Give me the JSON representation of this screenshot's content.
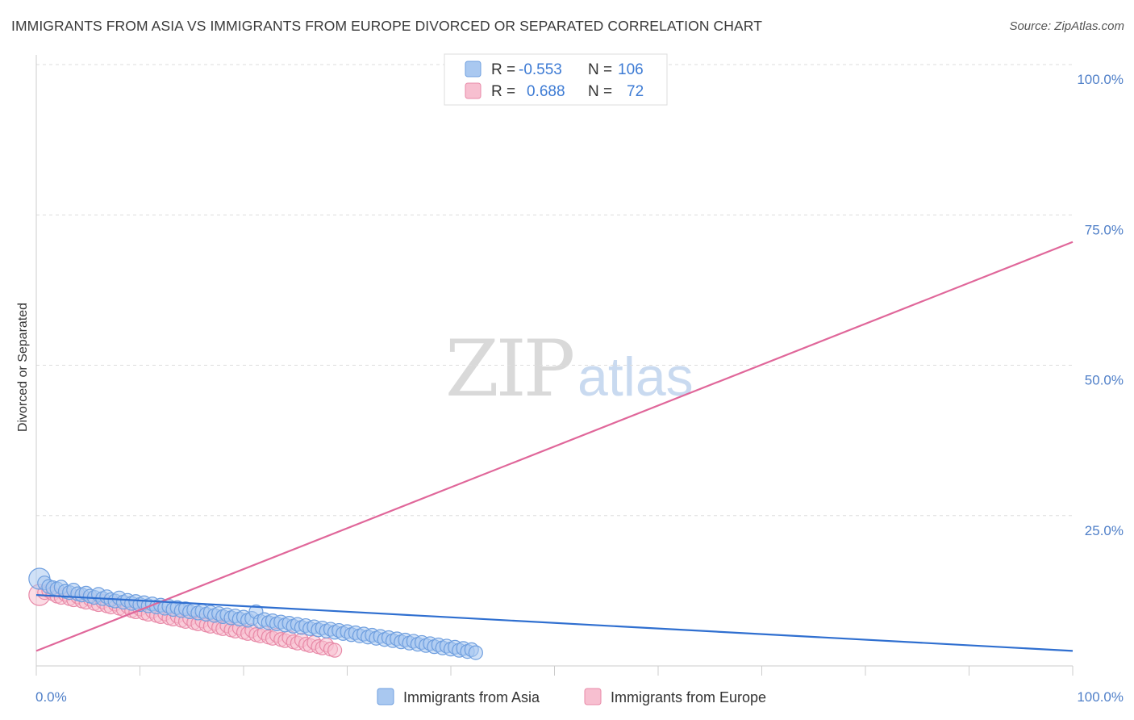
{
  "title": "IMMIGRANTS FROM ASIA VS IMMIGRANTS FROM EUROPE DIVORCED OR SEPARATED CORRELATION CHART",
  "source": "Source: ZipAtlas.com",
  "watermark": {
    "zip": "ZIP",
    "atlas": "atlas"
  },
  "colors": {
    "asia_fill": "#a9c8f0",
    "asia_stroke": "#6f9fdf",
    "asia_line": "#2f6fd0",
    "europe_fill": "#f7bfd0",
    "europe_stroke": "#e88aa8",
    "europe_line": "#e0679a",
    "grid": "#dddddd",
    "tick_text": "#4f7fc8"
  },
  "legend": {
    "asia": {
      "r_label": "R =",
      "r_value": "-0.553",
      "n_label": "N =",
      "n_value": "106"
    },
    "europe": {
      "r_label": "R =",
      "r_value": "0.688",
      "n_label": "N =",
      "n_value": "72"
    }
  },
  "chart_data": {
    "type": "scatter",
    "title": "IMMIGRANTS FROM ASIA VS IMMIGRANTS FROM EUROPE DIVORCED OR SEPARATED CORRELATION CHART",
    "xlabel": "",
    "ylabel": "Divorced or Separated",
    "xlim": [
      0,
      100
    ],
    "ylim": [
      0,
      100
    ],
    "x_tick_labels": [
      "0.0%",
      "100.0%"
    ],
    "y_ticks": [
      25,
      50,
      75,
      100
    ],
    "y_tick_labels": [
      "25.0%",
      "50.0%",
      "75.0%",
      "100.0%"
    ],
    "legend_position": "top-center",
    "series": [
      {
        "name": "Immigrants from Asia",
        "r": -0.553,
        "n": 106,
        "trendline": {
          "x": [
            0,
            100
          ],
          "y": [
            11.8,
            2.5
          ]
        },
        "points": [
          [
            0.3,
            14.5
          ],
          [
            0.8,
            13.8
          ],
          [
            1.2,
            13.2
          ],
          [
            1.6,
            13.0
          ],
          [
            2.0,
            12.8
          ],
          [
            2.4,
            13.1
          ],
          [
            2.8,
            12.4
          ],
          [
            3.2,
            12.2
          ],
          [
            3.6,
            12.6
          ],
          [
            4.0,
            12.0
          ],
          [
            4.4,
            11.8
          ],
          [
            4.8,
            12.1
          ],
          [
            5.2,
            11.6
          ],
          [
            5.6,
            11.4
          ],
          [
            6.0,
            11.9
          ],
          [
            6.4,
            11.2
          ],
          [
            6.8,
            11.5
          ],
          [
            7.2,
            11.0
          ],
          [
            7.6,
            10.8
          ],
          [
            8.0,
            11.3
          ],
          [
            8.4,
            10.6
          ],
          [
            8.8,
            10.9
          ],
          [
            9.2,
            10.4
          ],
          [
            9.6,
            10.7
          ],
          [
            10.0,
            10.2
          ],
          [
            10.4,
            10.5
          ],
          [
            10.8,
            10.0
          ],
          [
            11.2,
            10.3
          ],
          [
            11.6,
            9.8
          ],
          [
            12.0,
            10.1
          ],
          [
            12.4,
            9.6
          ],
          [
            12.8,
            9.9
          ],
          [
            13.2,
            9.4
          ],
          [
            13.6,
            9.7
          ],
          [
            14.0,
            9.2
          ],
          [
            14.4,
            9.5
          ],
          [
            14.8,
            9.0
          ],
          [
            15.2,
            9.3
          ],
          [
            15.6,
            8.8
          ],
          [
            16.0,
            9.1
          ],
          [
            16.4,
            8.6
          ],
          [
            16.8,
            8.9
          ],
          [
            17.2,
            8.4
          ],
          [
            17.6,
            8.7
          ],
          [
            18.0,
            8.2
          ],
          [
            18.4,
            8.5
          ],
          [
            18.8,
            8.0
          ],
          [
            19.2,
            8.3
          ],
          [
            19.6,
            7.8
          ],
          [
            20.0,
            8.1
          ],
          [
            20.4,
            7.6
          ],
          [
            20.8,
            7.9
          ],
          [
            21.2,
            9.0
          ],
          [
            21.6,
            7.4
          ],
          [
            22.0,
            7.7
          ],
          [
            22.4,
            7.2
          ],
          [
            22.8,
            7.5
          ],
          [
            23.2,
            7.0
          ],
          [
            23.6,
            7.3
          ],
          [
            24.0,
            6.8
          ],
          [
            24.4,
            7.1
          ],
          [
            24.8,
            6.6
          ],
          [
            25.2,
            6.9
          ],
          [
            25.6,
            6.4
          ],
          [
            26.0,
            6.7
          ],
          [
            26.4,
            6.2
          ],
          [
            26.8,
            6.5
          ],
          [
            27.2,
            6.0
          ],
          [
            27.6,
            6.3
          ],
          [
            28.0,
            5.8
          ],
          [
            28.4,
            6.1
          ],
          [
            28.8,
            5.6
          ],
          [
            29.2,
            5.9
          ],
          [
            29.6,
            5.4
          ],
          [
            30.0,
            5.7
          ],
          [
            30.4,
            5.2
          ],
          [
            30.8,
            5.5
          ],
          [
            31.2,
            5.0
          ],
          [
            31.6,
            5.3
          ],
          [
            32.0,
            4.8
          ],
          [
            32.4,
            5.1
          ],
          [
            32.8,
            4.6
          ],
          [
            33.2,
            4.9
          ],
          [
            33.6,
            4.4
          ],
          [
            34.0,
            4.7
          ],
          [
            34.4,
            4.2
          ],
          [
            34.8,
            4.5
          ],
          [
            35.2,
            4.0
          ],
          [
            35.6,
            4.3
          ],
          [
            36.0,
            3.8
          ],
          [
            36.4,
            4.1
          ],
          [
            36.8,
            3.6
          ],
          [
            37.2,
            3.9
          ],
          [
            37.6,
            3.4
          ],
          [
            38.0,
            3.7
          ],
          [
            38.4,
            3.2
          ],
          [
            38.8,
            3.5
          ],
          [
            39.2,
            3.0
          ],
          [
            39.6,
            3.3
          ],
          [
            40.0,
            2.8
          ],
          [
            40.4,
            3.1
          ],
          [
            40.8,
            2.6
          ],
          [
            41.2,
            2.9
          ],
          [
            41.6,
            2.4
          ],
          [
            42.0,
            2.7
          ],
          [
            42.4,
            2.2
          ]
        ]
      },
      {
        "name": "Immigrants from Europe",
        "r": 0.688,
        "n": 72,
        "trendline": {
          "x": [
            0,
            100
          ],
          "y": [
            2.5,
            70.5
          ]
        },
        "points": [
          [
            0.3,
            11.8
          ],
          [
            0.8,
            12.2
          ],
          [
            1.2,
            12.5
          ],
          [
            1.6,
            12.0
          ],
          [
            2.0,
            11.6
          ],
          [
            2.4,
            11.4
          ],
          [
            2.8,
            11.9
          ],
          [
            3.2,
            11.2
          ],
          [
            3.6,
            11.0
          ],
          [
            4.0,
            11.5
          ],
          [
            4.4,
            10.8
          ],
          [
            4.8,
            10.6
          ],
          [
            5.2,
            11.1
          ],
          [
            5.6,
            10.4
          ],
          [
            6.0,
            10.2
          ],
          [
            6.4,
            10.7
          ],
          [
            6.8,
            10.0
          ],
          [
            7.2,
            9.8
          ],
          [
            7.6,
            10.3
          ],
          [
            8.0,
            9.6
          ],
          [
            8.4,
            9.4
          ],
          [
            8.8,
            9.9
          ],
          [
            9.2,
            9.2
          ],
          [
            9.6,
            9.0
          ],
          [
            10.0,
            9.5
          ],
          [
            10.4,
            8.8
          ],
          [
            10.8,
            8.6
          ],
          [
            11.2,
            9.1
          ],
          [
            11.6,
            8.4
          ],
          [
            12.0,
            8.2
          ],
          [
            12.4,
            8.7
          ],
          [
            12.8,
            8.0
          ],
          [
            13.2,
            7.8
          ],
          [
            13.6,
            8.3
          ],
          [
            14.0,
            7.6
          ],
          [
            14.4,
            7.4
          ],
          [
            14.8,
            7.9
          ],
          [
            15.2,
            7.2
          ],
          [
            15.6,
            7.0
          ],
          [
            16.0,
            7.5
          ],
          [
            16.4,
            6.8
          ],
          [
            16.8,
            6.6
          ],
          [
            17.2,
            7.1
          ],
          [
            17.6,
            6.4
          ],
          [
            18.0,
            6.2
          ],
          [
            18.4,
            6.7
          ],
          [
            18.8,
            6.0
          ],
          [
            19.2,
            5.8
          ],
          [
            19.6,
            6.3
          ],
          [
            20.0,
            5.6
          ],
          [
            20.4,
            5.4
          ],
          [
            20.8,
            5.9
          ],
          [
            21.2,
            5.2
          ],
          [
            21.6,
            5.0
          ],
          [
            22.0,
            5.5
          ],
          [
            22.4,
            4.8
          ],
          [
            22.8,
            4.6
          ],
          [
            23.2,
            5.1
          ],
          [
            23.6,
            4.4
          ],
          [
            24.0,
            4.2
          ],
          [
            24.4,
            4.7
          ],
          [
            24.8,
            4.0
          ],
          [
            25.2,
            3.8
          ],
          [
            25.6,
            4.3
          ],
          [
            26.0,
            3.6
          ],
          [
            26.4,
            3.4
          ],
          [
            26.8,
            3.9
          ],
          [
            27.2,
            3.2
          ],
          [
            27.6,
            3.0
          ],
          [
            28.0,
            3.5
          ],
          [
            28.4,
            2.8
          ],
          [
            28.8,
            2.6
          ]
        ]
      }
    ]
  },
  "bottom_legend": {
    "asia": "Immigrants from Asia",
    "europe": "Immigrants from Europe"
  }
}
